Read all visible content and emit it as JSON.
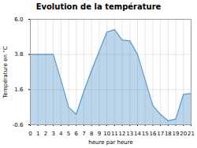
{
  "chart_data": {
    "type": "area",
    "title": "Evolution de la température",
    "xlabel": "heure par heure",
    "ylabel": "Température en °C",
    "color": "#5599cc",
    "x": [
      0,
      1,
      2,
      3,
      4,
      5,
      6,
      7,
      8,
      9,
      10,
      11,
      12,
      13,
      14,
      15,
      16,
      17,
      18,
      19,
      20,
      21
    ],
    "values": [
      3.8,
      3.8,
      3.8,
      3.8,
      2.2,
      0.5,
      0.05,
      1.5,
      2.8,
      4.0,
      5.2,
      5.35,
      4.7,
      4.65,
      3.8,
      2.2,
      0.6,
      0.05,
      -0.35,
      -0.25,
      1.3,
      1.35
    ],
    "xlim": [
      0,
      21
    ],
    "ylim": [
      -0.6,
      6.0
    ],
    "xticks": [
      0,
      1,
      2,
      3,
      4,
      5,
      6,
      7,
      8,
      9,
      10,
      11,
      12,
      13,
      14,
      15,
      16,
      17,
      18,
      19,
      20,
      21
    ],
    "yticks": [
      -0.6,
      1.6,
      3.8,
      {
        "value": 6.0,
        "label": "6.0"
      }
    ],
    "grid": true
  }
}
